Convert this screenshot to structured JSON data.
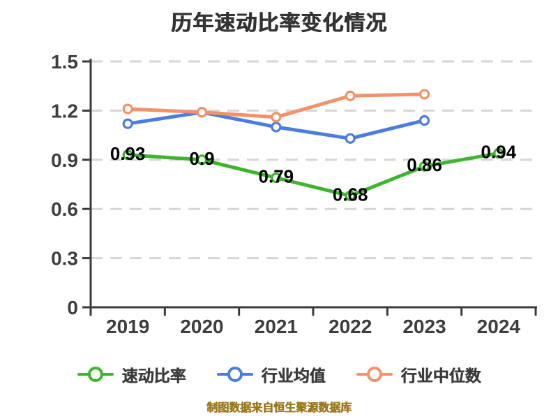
{
  "title": "历年速动比率变化情况",
  "footer": {
    "source_note": "制图数据来自恒生聚源数据库"
  },
  "colors": {
    "quick_ratio": "#3fb42e",
    "industry_avg": "#4b7de0",
    "industry_median": "#f2926a",
    "grid": "#d6d6d6",
    "axis": "#3a3a3a",
    "title_text": "#333333",
    "footer_text": "#9a771b"
  },
  "chart_data": {
    "type": "line",
    "title": "历年速动比率变化情况",
    "categories": [
      "2019",
      "2020",
      "2021",
      "2022",
      "2023",
      "2024"
    ],
    "xlabel": "",
    "ylabel": "",
    "ylim": [
      0,
      1.5
    ],
    "yticks": [
      0,
      0.3,
      0.6,
      0.9,
      1.2,
      1.5
    ],
    "grid": "horizontal-dashed",
    "legend_position": "bottom",
    "series": [
      {
        "name": "速动比率",
        "color": "#3fb42e",
        "values": [
          0.93,
          0.9,
          0.79,
          0.68,
          0.86,
          0.94
        ],
        "show_labels": true
      },
      {
        "name": "行业均值",
        "color": "#4b7de0",
        "values": [
          1.12,
          1.19,
          1.1,
          1.03,
          1.14,
          null
        ],
        "show_labels": false
      },
      {
        "name": "行业中位数",
        "color": "#f2926a",
        "values": [
          1.21,
          1.19,
          1.16,
          1.29,
          1.3,
          null
        ],
        "show_labels": false
      }
    ]
  }
}
